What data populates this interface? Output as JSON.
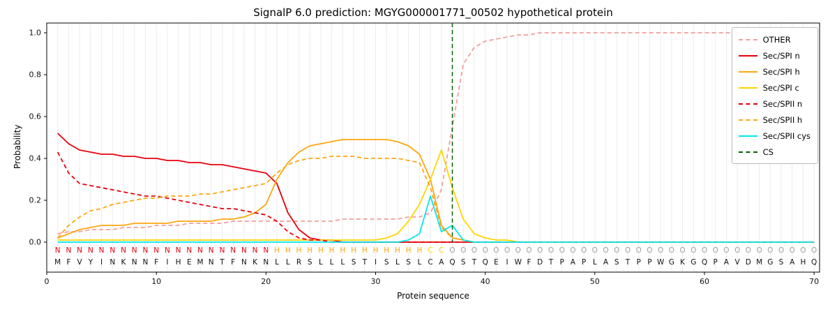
{
  "chart_data": {
    "type": "line",
    "title": "SignalP 6.0 prediction: MGYG000001771_00502 hypothetical protein",
    "xlabel": "Protein sequence",
    "ylabel": "Probability",
    "xlim": [
      0,
      70
    ],
    "ylim": [
      0.0,
      1.0
    ],
    "xticks": [
      0,
      10,
      20,
      30,
      40,
      50,
      60,
      70
    ],
    "yticks": [
      0.0,
      0.2,
      0.4,
      0.6,
      0.8,
      1.0
    ],
    "grid": "vertical line per residue, light gray",
    "legend_position": "upper right",
    "sequence": "MFVYINKNNFIHEMNTFNKNLLRSLLLSTISLSLCAQSTQEIWFDTPAPLASTPPWGKGQPAVDMGSAHQ",
    "region_labels": "NNNNNNNNNNNNNNNNNNNNHHHHHHHHHHHHHHCCOOOOOOOOOOOOOOOOOOOOOOOOOOOOOOOOOO",
    "region_colors": {
      "N": "#e8000b",
      "H": "#ffa510",
      "C": "#ffd500",
      "O": "#9e9e9e"
    },
    "cs_position": 37,
    "series": [
      {
        "name": "OTHER",
        "color": "#f49c9c",
        "dash": true,
        "values": [
          0.04,
          0.05,
          0.05,
          0.06,
          0.06,
          0.06,
          0.07,
          0.07,
          0.07,
          0.08,
          0.08,
          0.08,
          0.09,
          0.09,
          0.09,
          0.09,
          0.1,
          0.1,
          0.1,
          0.1,
          0.1,
          0.1,
          0.1,
          0.1,
          0.1,
          0.1,
          0.11,
          0.11,
          0.11,
          0.11,
          0.11,
          0.11,
          0.12,
          0.12,
          0.14,
          0.25,
          0.55,
          0.85,
          0.93,
          0.96,
          0.97,
          0.98,
          0.99,
          0.99,
          1,
          1,
          1,
          1,
          1,
          1,
          1,
          1,
          1,
          1,
          1,
          1,
          1,
          1,
          1,
          1,
          1,
          1,
          1,
          1,
          1,
          1,
          1,
          1,
          1,
          1
        ]
      },
      {
        "name": "Sec/SPI n",
        "color": "#e8000b",
        "dash": false,
        "values": [
          0.52,
          0.47,
          0.44,
          0.43,
          0.42,
          0.42,
          0.41,
          0.41,
          0.4,
          0.4,
          0.39,
          0.39,
          0.38,
          0.38,
          0.37,
          0.37,
          0.36,
          0.35,
          0.34,
          0.33,
          0.28,
          0.14,
          0.06,
          0.02,
          0.01,
          0.01,
          0,
          0,
          0,
          0,
          0,
          0,
          0,
          0,
          0,
          0,
          0,
          0,
          0,
          0,
          0,
          0,
          0,
          0,
          0,
          0,
          0,
          0,
          0,
          0,
          0,
          0,
          0,
          0,
          0,
          0,
          0,
          0,
          0,
          0,
          0,
          0,
          0,
          0,
          0,
          0,
          0,
          0,
          0,
          0
        ]
      },
      {
        "name": "Sec/SPI h",
        "color": "#ffa510",
        "dash": false,
        "values": [
          0.02,
          0.04,
          0.06,
          0.07,
          0.08,
          0.08,
          0.08,
          0.09,
          0.09,
          0.09,
          0.09,
          0.1,
          0.1,
          0.1,
          0.1,
          0.11,
          0.11,
          0.12,
          0.14,
          0.18,
          0.3,
          0.38,
          0.43,
          0.46,
          0.47,
          0.48,
          0.49,
          0.49,
          0.49,
          0.49,
          0.49,
          0.48,
          0.46,
          0.42,
          0.3,
          0.08,
          0.02,
          0.01,
          0,
          0,
          0,
          0,
          0,
          0,
          0,
          0,
          0,
          0,
          0,
          0,
          0,
          0,
          0,
          0,
          0,
          0,
          0,
          0,
          0,
          0,
          0,
          0,
          0,
          0,
          0,
          0,
          0,
          0,
          0,
          0
        ]
      },
      {
        "name": "Sec/SPI c",
        "color": "#ffd500",
        "dash": false,
        "values": [
          0.01,
          0.01,
          0.01,
          0.01,
          0.01,
          0.01,
          0.01,
          0.01,
          0.01,
          0.01,
          0.01,
          0.01,
          0.01,
          0.01,
          0.01,
          0.01,
          0.01,
          0.01,
          0.01,
          0.01,
          0.01,
          0.01,
          0.01,
          0.01,
          0.01,
          0.01,
          0.01,
          0.01,
          0.01,
          0.01,
          0.02,
          0.04,
          0.1,
          0.18,
          0.3,
          0.44,
          0.26,
          0.11,
          0.04,
          0.02,
          0.01,
          0.01,
          0,
          0,
          0,
          0,
          0,
          0,
          0,
          0,
          0,
          0,
          0,
          0,
          0,
          0,
          0,
          0,
          0,
          0,
          0,
          0,
          0,
          0,
          0,
          0,
          0,
          0,
          0,
          0
        ]
      },
      {
        "name": "Sec/SPII n",
        "color": "#e8000b",
        "dash": true,
        "values": [
          0.43,
          0.33,
          0.28,
          0.27,
          0.26,
          0.25,
          0.24,
          0.23,
          0.22,
          0.22,
          0.21,
          0.2,
          0.19,
          0.18,
          0.17,
          0.16,
          0.16,
          0.15,
          0.14,
          0.13,
          0.1,
          0.05,
          0.02,
          0.01,
          0.01,
          0,
          0,
          0,
          0,
          0,
          0,
          0,
          0,
          0,
          0,
          0,
          0,
          0,
          0,
          0,
          0,
          0,
          0,
          0,
          0,
          0,
          0,
          0,
          0,
          0,
          0,
          0,
          0,
          0,
          0,
          0,
          0,
          0,
          0,
          0,
          0,
          0,
          0,
          0,
          0,
          0,
          0,
          0,
          0,
          0
        ]
      },
      {
        "name": "Sec/SPII h",
        "color": "#ffa510",
        "dash": true,
        "values": [
          0.02,
          0.08,
          0.12,
          0.15,
          0.16,
          0.18,
          0.19,
          0.2,
          0.21,
          0.21,
          0.22,
          0.22,
          0.22,
          0.23,
          0.23,
          0.24,
          0.25,
          0.26,
          0.27,
          0.28,
          0.33,
          0.37,
          0.39,
          0.4,
          0.4,
          0.41,
          0.41,
          0.41,
          0.4,
          0.4,
          0.4,
          0.4,
          0.39,
          0.38,
          0.26,
          0.07,
          0.02,
          0.01,
          0,
          0,
          0,
          0,
          0,
          0,
          0,
          0,
          0,
          0,
          0,
          0,
          0,
          0,
          0,
          0,
          0,
          0,
          0,
          0,
          0,
          0,
          0,
          0,
          0,
          0,
          0,
          0,
          0,
          0,
          0,
          0
        ]
      },
      {
        "name": "Sec/SPII cys",
        "color": "#00e5ee",
        "dash": false,
        "values": [
          0,
          0,
          0,
          0,
          0,
          0,
          0,
          0,
          0,
          0,
          0,
          0,
          0,
          0,
          0,
          0,
          0,
          0,
          0,
          0,
          0,
          0,
          0,
          0,
          0,
          0,
          0,
          0,
          0,
          0,
          0,
          0,
          0.01,
          0.04,
          0.22,
          0.05,
          0.08,
          0.01,
          0,
          0,
          0,
          0,
          0,
          0,
          0,
          0,
          0,
          0,
          0,
          0,
          0,
          0,
          0,
          0,
          0,
          0,
          0,
          0,
          0,
          0,
          0,
          0,
          0,
          0,
          0,
          0,
          0,
          0,
          0,
          0
        ]
      },
      {
        "name": "CS",
        "color": "#006400",
        "dash": true,
        "type": "vline",
        "x": 37
      }
    ]
  }
}
